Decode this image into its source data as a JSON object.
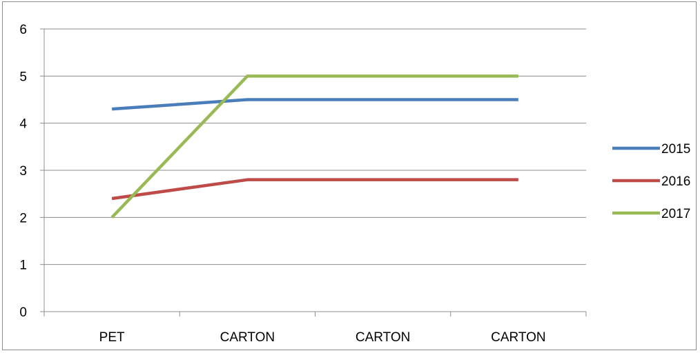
{
  "chart_data": {
    "type": "line",
    "categories": [
      "PET",
      "CARTON",
      "CARTON",
      "CARTON"
    ],
    "series": [
      {
        "name": "2015",
        "values": [
          4.3,
          4.5,
          4.5,
          4.5
        ],
        "color": "#4a7ebb"
      },
      {
        "name": "2016",
        "values": [
          2.4,
          2.8,
          2.8,
          2.8
        ],
        "color": "#be4b48"
      },
      {
        "name": "2017",
        "values": [
          2.0,
          5.0,
          5.0,
          5.0
        ],
        "color": "#98b954"
      }
    ],
    "ylim": [
      0,
      6
    ],
    "yticks": [
      "0",
      "1",
      "2",
      "3",
      "4",
      "5",
      "6"
    ],
    "grid": true,
    "legend_position": "right"
  }
}
